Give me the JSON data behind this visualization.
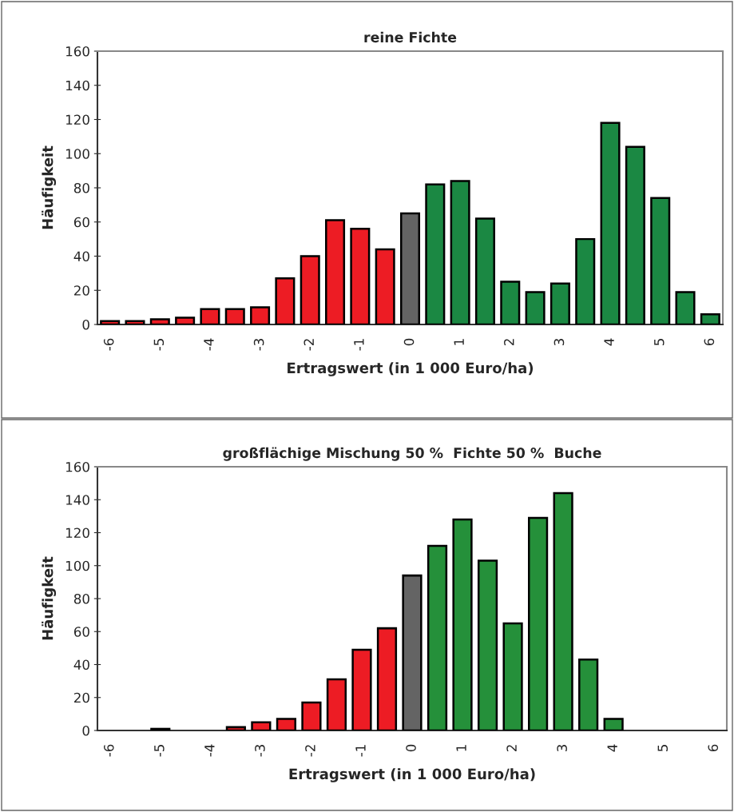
{
  "chart_data": [
    {
      "type": "bar",
      "title": "reine Fichte",
      "xlabel": "Ertragswert (in 1 000 Euro/ha)",
      "ylabel": "Häufigkeit",
      "categories": [
        "-6",
        null,
        "-5",
        null,
        "-4",
        null,
        "-3",
        null,
        "-2",
        null,
        "-1",
        null,
        "0",
        null,
        "1",
        null,
        "2",
        null,
        "3",
        null,
        "4",
        null,
        "5",
        null,
        "6"
      ],
      "values": [
        2,
        2,
        3,
        4,
        9,
        9,
        10,
        27,
        40,
        61,
        56,
        44,
        65,
        82,
        84,
        62,
        25,
        19,
        24,
        50,
        118,
        104,
        74,
        19,
        6
      ],
      "colors": [
        "#ed1c24",
        "#ed1c24",
        "#ed1c24",
        "#ed1c24",
        "#ed1c24",
        "#ed1c24",
        "#ed1c24",
        "#ed1c24",
        "#ed1c24",
        "#ed1c24",
        "#ed1c24",
        "#ed1c24",
        "#646464",
        "#1b8843",
        "#1b8843",
        "#1b8843",
        "#1b8843",
        "#1b8843",
        "#1b8843",
        "#1b8843",
        "#1b8843",
        "#1b8843",
        "#1b8843",
        "#1b8843",
        "#1b8843"
      ],
      "ylim": [
        0,
        160
      ],
      "yticks": [
        0,
        20,
        40,
        60,
        80,
        100,
        120,
        140,
        160
      ]
    },
    {
      "type": "bar",
      "title": "großflächige Mischung 50 %  Fichte 50 %  Buche",
      "xlabel": "Ertragswert (in 1 000 Euro/ha)",
      "ylabel": "Häufigkeit",
      "categories": [
        "-6",
        null,
        "-5",
        null,
        "-4",
        null,
        "-3",
        null,
        "-2",
        null,
        "-1",
        null,
        "0",
        null,
        "1",
        null,
        "2",
        null,
        "3",
        null,
        "4",
        null,
        "5",
        null,
        "6"
      ],
      "values": [
        0,
        0,
        1,
        0,
        0,
        2,
        5,
        7,
        17,
        31,
        49,
        62,
        94,
        112,
        128,
        103,
        65,
        129,
        144,
        43,
        7,
        0,
        0,
        0,
        0
      ],
      "colors": [
        "#ed1c24",
        "#ed1c24",
        "#ed1c24",
        "#ed1c24",
        "#ed1c24",
        "#ed1c24",
        "#ed1c24",
        "#ed1c24",
        "#ed1c24",
        "#ed1c24",
        "#ed1c24",
        "#ed1c24",
        "#646464",
        "#25903a",
        "#25903a",
        "#25903a",
        "#25903a",
        "#25903a",
        "#25903a",
        "#25903a",
        "#25903a",
        "#25903a",
        "#25903a",
        "#25903a",
        "#25903a"
      ],
      "ylim": [
        0,
        160
      ],
      "yticks": [
        0,
        20,
        40,
        60,
        80,
        100,
        120,
        140,
        160
      ]
    }
  ]
}
